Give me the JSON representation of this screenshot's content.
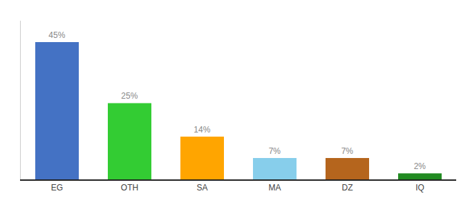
{
  "chart_data": {
    "type": "bar",
    "categories": [
      "EG",
      "OTH",
      "SA",
      "MA",
      "DZ",
      "IQ"
    ],
    "values": [
      45,
      25,
      14,
      7,
      7,
      2
    ],
    "value_labels": [
      "45%",
      "25%",
      "14%",
      "7%",
      "7%",
      "2%"
    ],
    "colors": [
      "#4472C4",
      "#33CC33",
      "#FFA500",
      "#87CEEB",
      "#B5651D",
      "#228B22"
    ],
    "ylim": [
      0,
      52
    ],
    "data_labels": true,
    "tick_labels": "x",
    "grid": false
  }
}
